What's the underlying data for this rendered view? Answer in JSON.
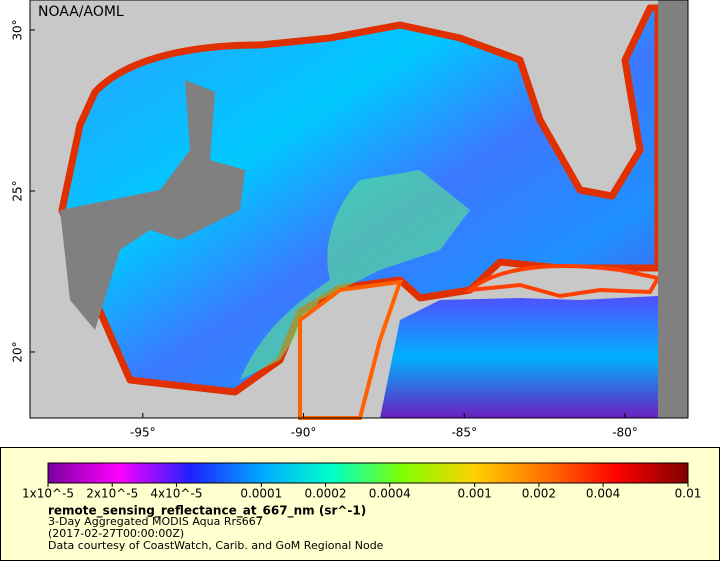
{
  "chart_data": {
    "type": "map",
    "title": "NOAA/AOML",
    "xlim": [
      -98.51,
      -78.04
    ],
    "ylim": [
      17.95,
      30.93
    ],
    "xticks": [
      {
        "value": -95,
        "label": "-95°"
      },
      {
        "value": -90,
        "label": "-90°"
      },
      {
        "value": -85,
        "label": "-85°"
      },
      {
        "value": -80,
        "label": "-80°"
      }
    ],
    "yticks": [
      {
        "value": 20,
        "label": "20°"
      },
      {
        "value": 25,
        "label": "25°"
      },
      {
        "value": 30,
        "label": "30°"
      }
    ],
    "colorbar": {
      "log_scale": true,
      "lim": [
        1e-05,
        0.01
      ],
      "colormap": [
        "#7a00a0",
        "#ff00ff",
        "#2020ff",
        "#00a8ff",
        "#00ffc8",
        "#80ff00",
        "#ffd000",
        "#ff7000",
        "#ff0000",
        "#800000"
      ],
      "ticks": [
        {
          "value": 1e-05,
          "label": "1x10^-5"
        },
        {
          "value": 2e-05,
          "label": "2x10^-5"
        },
        {
          "value": 4e-05,
          "label": "4x10^-5"
        },
        0.0001,
        0.0002,
        0.0004,
        0.001,
        0.002,
        0.004,
        0.01
      ],
      "variable": "remote_sensing_reflectance_at_667_nm (sr^-1)",
      "lines": [
        "3-Day Aggregated MODIS Aqua Rrs667",
        "(2017-02-27T00:00:00Z)",
        "Data courtesy of CoastWatch, Carib. and GoM Regional Node"
      ]
    }
  }
}
